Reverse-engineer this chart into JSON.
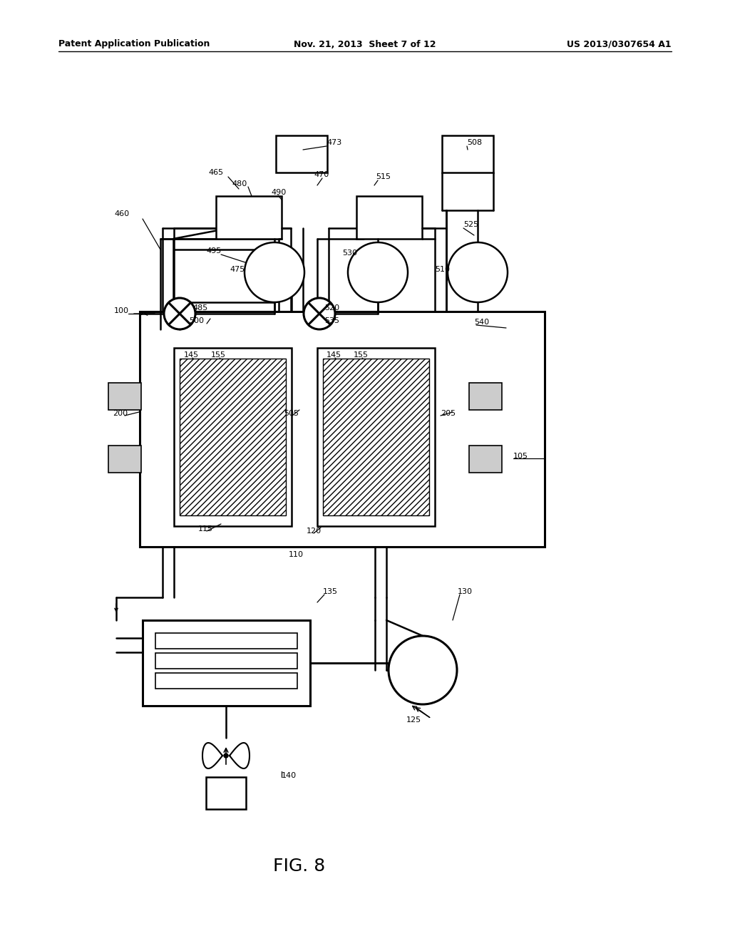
{
  "bg_color": "#ffffff",
  "lc": "#000000",
  "header_left": "Patent Application Publication",
  "header_mid": "Nov. 21, 2013  Sheet 7 of 12",
  "header_right": "US 2013/0307654 A1",
  "figure_label": "FIG. 8"
}
